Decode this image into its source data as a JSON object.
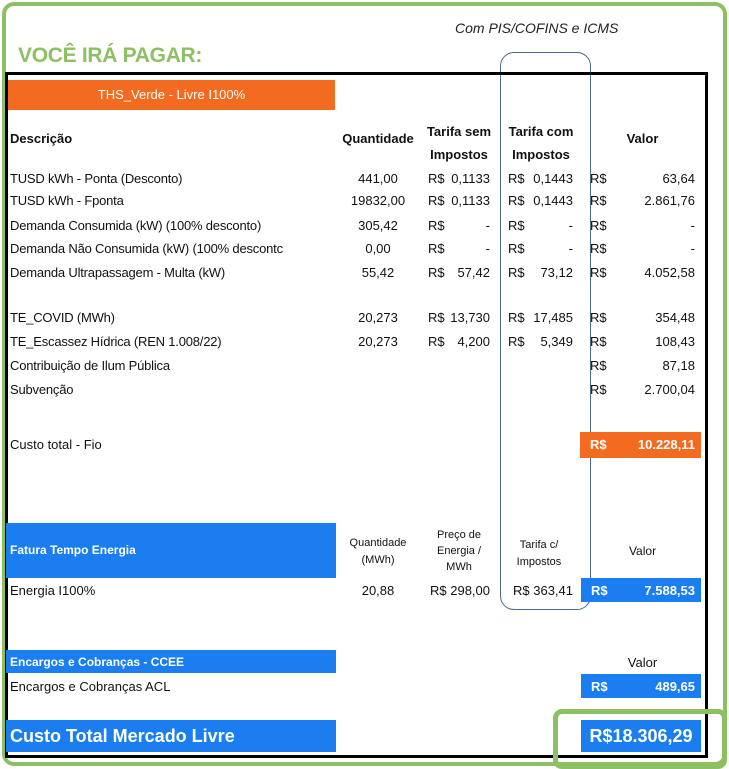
{
  "note": "Com  PIS/COFINS e ICMS",
  "title": "VOCÊ IRÁ PAGAR:",
  "plan_header": "THS_Verde - Livre I100%",
  "columns": {
    "descricao": "Descrição",
    "quantidade": "Quantidade",
    "tarifa_sem": [
      "Tarifa sem",
      "Impostos"
    ],
    "tarifa_com": [
      "Tarifa com",
      "Impostos"
    ],
    "valor": "Valor"
  },
  "rows": [
    {
      "desc": "TUSD kWh - Ponta (Desconto)",
      "qtd": "441,00",
      "sem_cur": "R$",
      "sem": "0,1133",
      "com_cur": "R$",
      "com": "0,1443",
      "val_cur": "R$",
      "val": "63,64"
    },
    {
      "desc": "TUSD kWh - Fponta",
      "qtd": "19832,00",
      "sem_cur": "R$",
      "sem": "0,1133",
      "com_cur": "R$",
      "com": "0,1443",
      "val_cur": "R$",
      "val": "2.861,76"
    },
    {
      "desc": "Demanda Consumida (kW) (100% desconto)",
      "qtd": "305,42",
      "sem_cur": "R$",
      "sem": "-",
      "com_cur": "R$",
      "com": "-",
      "val_cur": "R$",
      "val": "-"
    },
    {
      "desc": "Demanda Não Consumida (kW) (100% descontc",
      "qtd": "0,00",
      "sem_cur": "R$",
      "sem": "-",
      "com_cur": "R$",
      "com": "-",
      "val_cur": "R$",
      "val": "-"
    },
    {
      "desc": "Demanda Ultrapassagem - Multa (kW)",
      "qtd": "55,42",
      "sem_cur": "R$",
      "sem": "57,42",
      "com_cur": "R$",
      "com": "73,12",
      "val_cur": "R$",
      "val": "4.052,58"
    },
    {
      "desc": "TE_COVID (MWh)",
      "qtd": "20,273",
      "sem_cur": "R$",
      "sem": "13,730",
      "com_cur": "R$",
      "com": "17,485",
      "val_cur": "R$",
      "val": "354,48"
    },
    {
      "desc": "TE_Escassez Hídrica (REN 1.008/22)",
      "qtd": "20,273",
      "sem_cur": "R$",
      "sem": "4,200",
      "com_cur": "R$",
      "com": "5,349",
      "val_cur": "R$",
      "val": "108,43"
    },
    {
      "desc": "Contribuição de Ilum Pública",
      "qtd": "",
      "sem_cur": "",
      "sem": "",
      "com_cur": "",
      "com": "",
      "val_cur": "R$",
      "val": "87,18"
    },
    {
      "desc": "Subvenção",
      "qtd": "",
      "sem_cur": "",
      "sem": "",
      "com_cur": "",
      "com": "",
      "val_cur": "R$",
      "val": "2.700,04"
    }
  ],
  "fio_total": {
    "label": "Custo total - Fio",
    "cur": "R$",
    "value": "10.228,11"
  },
  "energia": {
    "header": "Fatura Tempo Energia",
    "col_qtd": [
      "Quantidade",
      "(MWh)"
    ],
    "col_preco": [
      "Preço de",
      "Energia /",
      "MWh"
    ],
    "col_tarifa": [
      "Tarifa c/",
      "Impostos"
    ],
    "col_valor": "Valor",
    "row": {
      "desc": "Energia I100%",
      "qtd": "20,88",
      "preco": "R$ 298,00",
      "tarifa": "R$ 363,41",
      "cur": "R$",
      "value": "7.588,53"
    }
  },
  "encargos": {
    "header": "Encargos e Cobranças - CCEE",
    "col_valor": "Valor",
    "row": {
      "desc": "Encargos e Cobranças ACL",
      "cur": "R$",
      "value": "489,65"
    }
  },
  "total": {
    "label": "Custo Total Mercado Livre",
    "value": "R$18.306,29"
  },
  "colors": {
    "green": "#8dc063",
    "orange": "#f26b21",
    "blue": "#1a7ef0"
  }
}
